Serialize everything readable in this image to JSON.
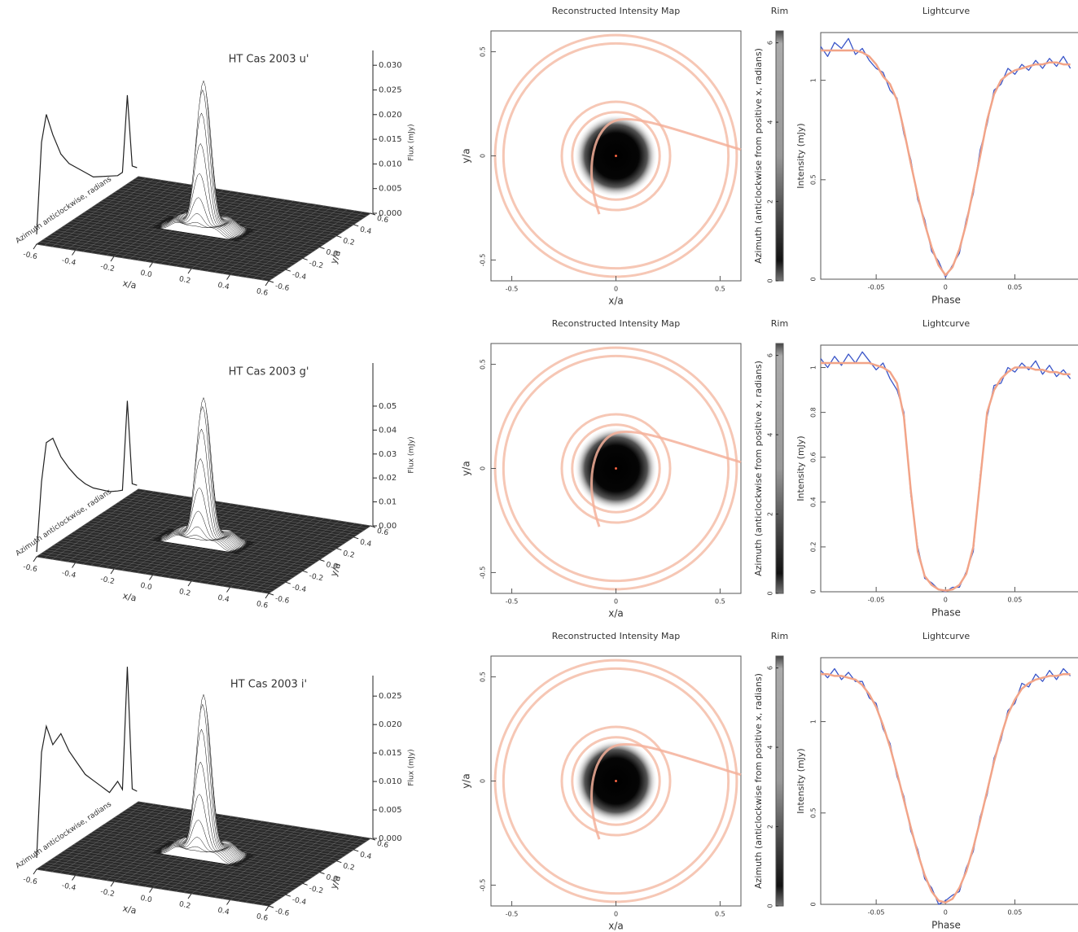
{
  "chart_data": [
    {
      "type": "surface3d",
      "title": "HT Cas 2003 u'",
      "xlabel": "x/a",
      "ylabel": "y/a",
      "zlabel": "Flux (mJy)",
      "side_label": "Azimuth anticlockwise, radians",
      "xlim": [
        -0.6,
        0.6
      ],
      "ylim": [
        -0.6,
        0.6
      ],
      "zlim": [
        0,
        0.033
      ],
      "xticks": [
        -0.6,
        -0.4,
        -0.2,
        {
          "value": 0,
          "label": "0.0"
        },
        0.2,
        0.4,
        0.6
      ],
      "yticks": [
        -0.6,
        -0.4,
        -0.2,
        {
          "value": 0,
          "label": "0.0"
        },
        0.2,
        0.4,
        0.6
      ],
      "zticks": [
        {
          "value": 0,
          "label": "0.000"
        },
        0.005,
        {
          "value": 0.01,
          "label": "0.010"
        },
        0.015,
        {
          "value": 0.02,
          "label": "0.020"
        },
        0.025,
        {
          "value": 0.03,
          "label": "0.030"
        }
      ],
      "peak": 0.03,
      "rim_x": [
        0,
        0.3,
        0.6,
        1.0,
        1.5,
        2,
        2.5,
        3,
        3.5,
        4,
        4.5,
        5,
        5.3,
        5.6,
        5.9,
        6.2
      ],
      "rim_values": [
        0.002,
        0.02,
        0.025,
        0.02,
        0.015,
        0.012,
        0.01,
        0.008,
        0.006,
        0.005,
        0.004,
        0.003,
        0.003,
        0.018,
        0.003,
        0.002
      ]
    },
    {
      "type": "map",
      "title": "Reconstructed Intensity Map",
      "xlabel": "x/a",
      "ylabel": "y/a",
      "xlim": [
        -0.6,
        0.6
      ],
      "ylim": [
        -0.6,
        0.6
      ],
      "xticks": [
        -0.5,
        0,
        0.5
      ],
      "yticks": [
        -0.5,
        0,
        0.5
      ],
      "colorbar": {
        "title": "Rim",
        "label": "Azimuth (anticlockwise from positive x, radians)",
        "ylim": [
          0,
          6.3
        ],
        "yticks": [
          0,
          2,
          4,
          6
        ]
      }
    },
    {
      "type": "line",
      "title": "Lightcurve",
      "xlabel": "Phase",
      "ylabel": "Intensity (mJy)",
      "xlim": [
        -0.09,
        0.092
      ],
      "ylim": [
        0,
        1.24
      ],
      "xticks": [
        -0.05,
        0,
        0.05
      ],
      "yticks": [
        0,
        0.5,
        1
      ],
      "x": [
        -0.09,
        -0.085,
        -0.08,
        -0.075,
        -0.07,
        -0.065,
        -0.06,
        -0.055,
        -0.05,
        -0.045,
        -0.04,
        -0.035,
        -0.03,
        -0.025,
        -0.02,
        -0.015,
        -0.01,
        -0.005,
        0,
        0.005,
        0.01,
        0.015,
        0.02,
        0.025,
        0.03,
        0.035,
        0.04,
        0.045,
        0.05,
        0.055,
        0.06,
        0.065,
        0.07,
        0.075,
        0.08,
        0.085,
        0.09
      ],
      "series": [
        {
          "color": "#3a55c8",
          "values": [
            1.17,
            1.12,
            1.19,
            1.16,
            1.21,
            1.13,
            1.16,
            1.1,
            1.06,
            1.04,
            0.95,
            0.91,
            0.73,
            0.6,
            0.4,
            0.3,
            0.14,
            0.09,
            0.01,
            0.07,
            0.13,
            0.3,
            0.43,
            0.65,
            0.78,
            0.95,
            0.98,
            1.06,
            1.03,
            1.08,
            1.05,
            1.1,
            1.06,
            1.11,
            1.07,
            1.12,
            1.06
          ]
        },
        {
          "color": "#f2a488",
          "values": [
            1.15,
            1.15,
            1.15,
            1.15,
            1.15,
            1.15,
            1.14,
            1.12,
            1.08,
            1.02,
            0.98,
            0.9,
            0.75,
            0.58,
            0.42,
            0.28,
            0.16,
            0.07,
            0.02,
            0.06,
            0.15,
            0.28,
            0.45,
            0.62,
            0.8,
            0.93,
            1.0,
            1.03,
            1.05,
            1.06,
            1.07,
            1.08,
            1.08,
            1.09,
            1.09,
            1.08,
            1.08
          ]
        }
      ]
    },
    {
      "type": "surface3d",
      "title": "HT Cas 2003 g'",
      "xlabel": "x/a",
      "ylabel": "y/a",
      "zlabel": "Flux (mJy)",
      "side_label": "Azimuth anticlockwise, radians",
      "xlim": [
        -0.6,
        0.6
      ],
      "ylim": [
        -0.6,
        0.6
      ],
      "zlim": [
        0,
        0.068
      ],
      "xticks": [
        -0.6,
        -0.4,
        -0.2,
        {
          "value": 0,
          "label": "0.0"
        },
        0.2,
        0.4,
        0.6
      ],
      "yticks": [
        -0.6,
        -0.4,
        -0.2,
        {
          "value": 0,
          "label": "0.0"
        },
        0.2,
        0.4,
        0.6
      ],
      "zticks": [
        {
          "value": 0,
          "label": "0.00"
        },
        0.01,
        0.02,
        0.03,
        0.04,
        0.05
      ],
      "peak": 0.06,
      "rim_x": [
        0,
        0.3,
        0.6,
        1.0,
        1.5,
        2,
        2.5,
        3,
        3.5,
        4,
        4.5,
        5,
        5.3,
        5.6,
        5.9,
        6.2
      ],
      "rim_values": [
        0.002,
        0.03,
        0.045,
        0.045,
        0.035,
        0.028,
        0.022,
        0.017,
        0.013,
        0.01,
        0.007,
        0.005,
        0.004,
        0.04,
        0.004,
        0.002
      ]
    },
    {
      "type": "map",
      "title": "Reconstructed Intensity Map",
      "xlabel": "x/a",
      "ylabel": "y/a",
      "xlim": [
        -0.6,
        0.6
      ],
      "ylim": [
        -0.6,
        0.6
      ],
      "xticks": [
        -0.5,
        0,
        0.5
      ],
      "yticks": [
        -0.5,
        0,
        0.5
      ],
      "colorbar": {
        "title": "Rim",
        "label": "Azimuth (anticlockwise from positive x, radians)",
        "ylim": [
          0,
          6.3
        ],
        "yticks": [
          0,
          2,
          4,
          6
        ]
      }
    },
    {
      "type": "line",
      "title": "Lightcurve",
      "xlabel": "Phase",
      "ylabel": "Intensity (mJy)",
      "xlim": [
        -0.09,
        0.092
      ],
      "ylim": [
        0,
        1.1
      ],
      "xticks": [
        -0.05,
        0,
        0.05
      ],
      "yticks": [
        0,
        0.2,
        0.4,
        0.6,
        0.8,
        1
      ],
      "x": [
        -0.09,
        -0.085,
        -0.08,
        -0.075,
        -0.07,
        -0.065,
        -0.06,
        -0.055,
        -0.05,
        -0.045,
        -0.04,
        -0.035,
        -0.03,
        -0.025,
        -0.02,
        -0.015,
        -0.01,
        -0.005,
        0,
        0.005,
        0.01,
        0.015,
        0.02,
        0.025,
        0.03,
        0.035,
        0.04,
        0.045,
        0.05,
        0.055,
        0.06,
        0.065,
        0.07,
        0.075,
        0.08,
        0.085,
        0.09
      ],
      "series": [
        {
          "color": "#3a55c8",
          "values": [
            1.04,
            1.0,
            1.05,
            1.01,
            1.06,
            1.02,
            1.07,
            1.03,
            0.99,
            1.02,
            0.95,
            0.9,
            0.8,
            0.43,
            0.2,
            0.06,
            0.04,
            0.01,
            0.0,
            0.02,
            0.02,
            0.09,
            0.18,
            0.52,
            0.78,
            0.92,
            0.93,
            1.0,
            0.98,
            1.02,
            0.99,
            1.03,
            0.97,
            1.01,
            0.96,
            0.99,
            0.95
          ]
        },
        {
          "color": "#f2a488",
          "values": [
            1.02,
            1.02,
            1.02,
            1.02,
            1.02,
            1.02,
            1.02,
            1.02,
            1.01,
            1.0,
            0.98,
            0.93,
            0.78,
            0.45,
            0.18,
            0.07,
            0.03,
            0.01,
            0.005,
            0.01,
            0.03,
            0.08,
            0.2,
            0.5,
            0.8,
            0.9,
            0.95,
            0.98,
            1.0,
            1.0,
            1.0,
            0.99,
            0.99,
            0.98,
            0.98,
            0.97,
            0.97
          ]
        }
      ]
    },
    {
      "type": "surface3d",
      "title": "HT Cas 2003 i'",
      "xlabel": "x/a",
      "ylabel": "y/a",
      "zlabel": "Flux (mJy)",
      "side_label": "Azimuth anticlockwise, radians",
      "xlim": [
        -0.6,
        0.6
      ],
      "ylim": [
        -0.6,
        0.6
      ],
      "zlim": [
        0,
        0.0286
      ],
      "xticks": [
        -0.6,
        -0.4,
        -0.2,
        {
          "value": 0,
          "label": "0.0"
        },
        0.2,
        0.4,
        0.6
      ],
      "yticks": [
        -0.6,
        -0.4,
        -0.2,
        {
          "value": 0,
          "label": "0.0"
        },
        0.2,
        0.4,
        0.6
      ],
      "zticks": [
        {
          "value": 0,
          "label": "0.000"
        },
        0.005,
        {
          "value": 0.01,
          "label": "0.010"
        },
        0.015,
        {
          "value": 0.02,
          "label": "0.020"
        },
        0.025
      ],
      "peak": 0.028,
      "rim_x": [
        0,
        0.3,
        0.6,
        1.0,
        1.5,
        2,
        2.5,
        3,
        3.5,
        4,
        4.5,
        5,
        5.3,
        5.6,
        5.9,
        6.2
      ],
      "rim_values": [
        0.002,
        0.02,
        0.024,
        0.02,
        0.021,
        0.017,
        0.014,
        0.011,
        0.009,
        0.007,
        0.005,
        0.006,
        0.004,
        0.025,
        0.003,
        0.002
      ]
    },
    {
      "type": "map",
      "title": "Reconstructed Intensity Map",
      "xlabel": "x/a",
      "ylabel": "y/a",
      "xlim": [
        -0.6,
        0.6
      ],
      "ylim": [
        -0.6,
        0.6
      ],
      "xticks": [
        -0.5,
        0,
        0.5
      ],
      "yticks": [
        -0.5,
        0,
        0.5
      ],
      "colorbar": {
        "title": "Rim",
        "label": "Azimuth (anticlockwise from positive x, radians)",
        "ylim": [
          0,
          6.3
        ],
        "yticks": [
          0,
          2,
          4,
          6
        ]
      }
    },
    {
      "type": "line",
      "title": "Lightcurve",
      "xlabel": "Phase",
      "ylabel": "Intensity (mJy)",
      "xlim": [
        -0.09,
        0.092
      ],
      "ylim": [
        0,
        1.35
      ],
      "xticks": [
        -0.05,
        0,
        0.05
      ],
      "yticks": [
        0,
        0.5,
        1
      ],
      "x": [
        -0.09,
        -0.085,
        -0.08,
        -0.075,
        -0.07,
        -0.065,
        -0.06,
        -0.055,
        -0.05,
        -0.045,
        -0.04,
        -0.035,
        -0.03,
        -0.025,
        -0.02,
        -0.015,
        -0.01,
        -0.005,
        0,
        0.005,
        0.01,
        0.015,
        0.02,
        0.025,
        0.03,
        0.035,
        0.04,
        0.045,
        0.05,
        0.055,
        0.06,
        0.065,
        0.07,
        0.075,
        0.08,
        0.085,
        0.09
      ],
      "series": [
        {
          "color": "#3a55c8",
          "values": [
            1.28,
            1.24,
            1.29,
            1.23,
            1.27,
            1.22,
            1.22,
            1.13,
            1.1,
            0.96,
            0.88,
            0.7,
            0.59,
            0.4,
            0.3,
            0.14,
            0.09,
            0.0,
            0.02,
            0.05,
            0.07,
            0.2,
            0.29,
            0.48,
            0.6,
            0.8,
            0.9,
            1.06,
            1.1,
            1.21,
            1.19,
            1.26,
            1.22,
            1.28,
            1.23,
            1.29,
            1.25
          ]
        },
        {
          "color": "#f2a488",
          "values": [
            1.26,
            1.26,
            1.25,
            1.25,
            1.24,
            1.23,
            1.2,
            1.15,
            1.08,
            0.98,
            0.86,
            0.72,
            0.57,
            0.42,
            0.28,
            0.16,
            0.07,
            0.02,
            0.01,
            0.03,
            0.09,
            0.18,
            0.31,
            0.46,
            0.62,
            0.78,
            0.92,
            1.04,
            1.12,
            1.18,
            1.21,
            1.23,
            1.24,
            1.25,
            1.25,
            1.26,
            1.26
          ]
        }
      ]
    }
  ]
}
